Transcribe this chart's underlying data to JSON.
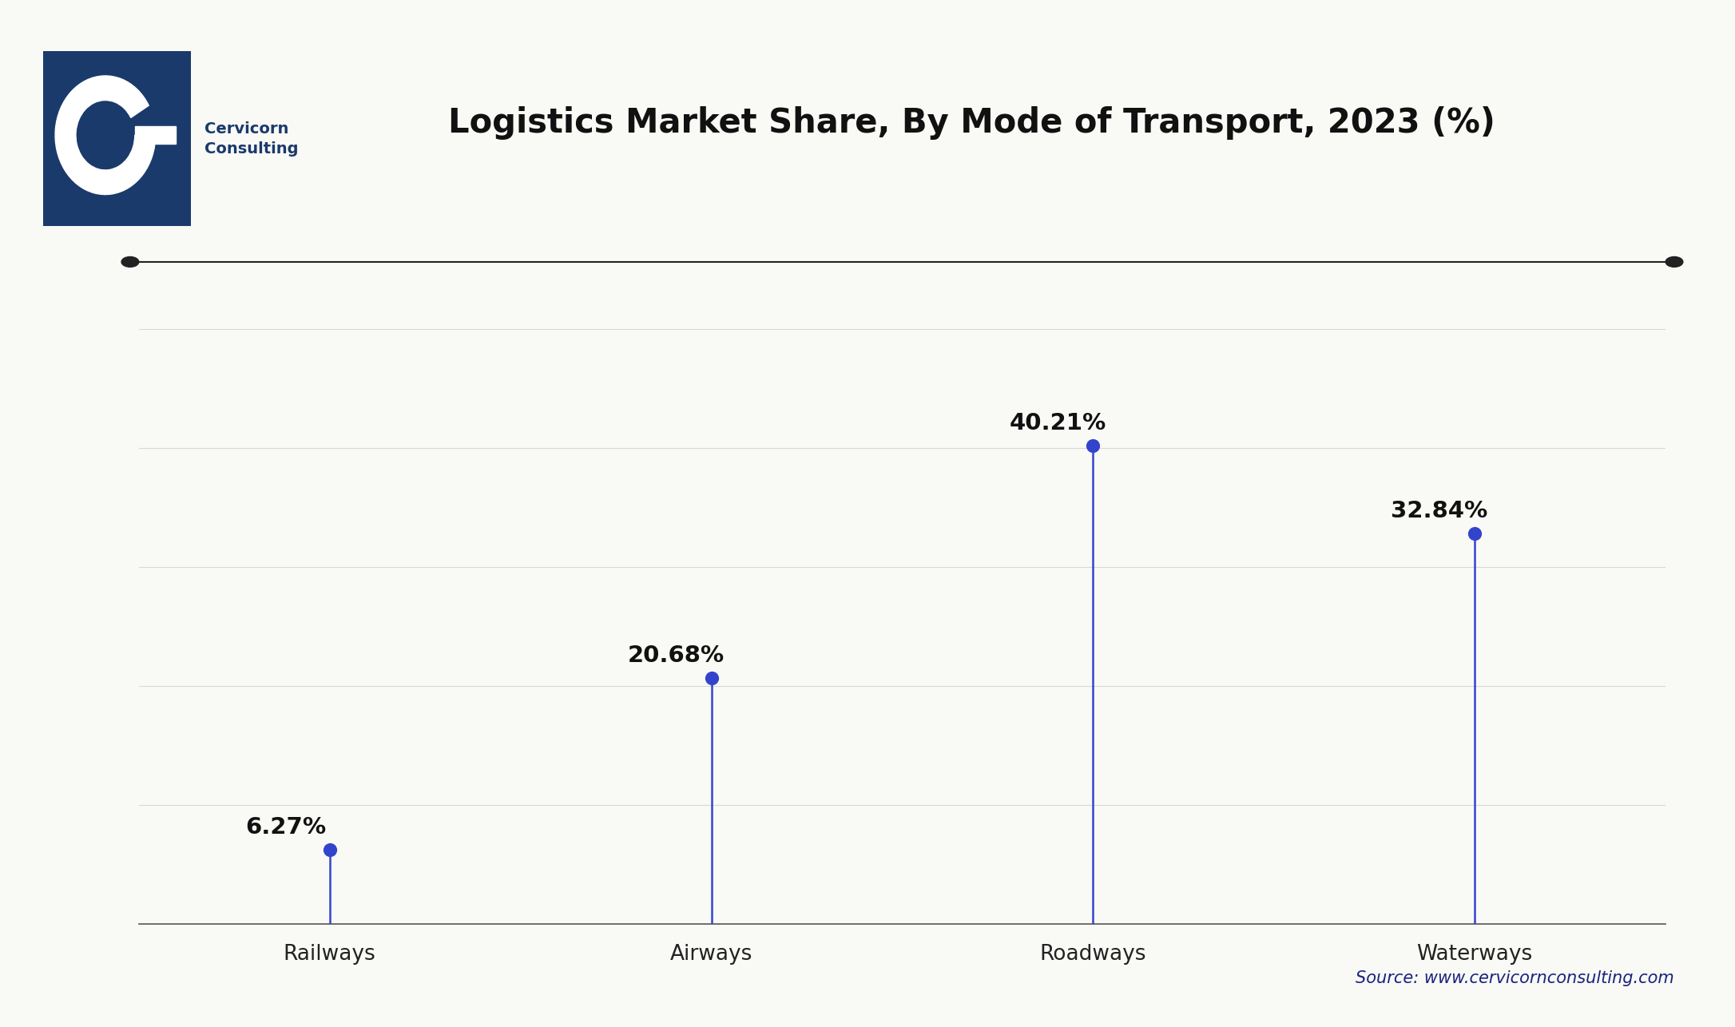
{
  "title": "Logistics Market Share, By Mode of Transport, 2023 (%)",
  "categories": [
    "Railways",
    "Airways",
    "Roadways",
    "Waterways"
  ],
  "values": [
    6.27,
    20.68,
    40.21,
    32.84
  ],
  "labels": [
    "6.27%",
    "20.68%",
    "40.21%",
    "32.84%"
  ],
  "line_color": "#3344cc",
  "marker_color": "#3344cc",
  "marker_size": 130,
  "background_color": "#f9f9f5",
  "ylim": [
    0,
    50
  ],
  "yticks": [
    0,
    10,
    20,
    30,
    40,
    50
  ],
  "title_fontsize": 30,
  "label_fontsize": 21,
  "tick_fontsize": 19,
  "source_text": "Source: www.cervicornconsulting.com",
  "source_fontsize": 15,
  "source_color": "#1a237e",
  "grid_color": "#d8d8d8",
  "axis_line_color": "#555555",
  "logo_bg_color": "#1a3a6b",
  "logo_text_color": "#1a3a6b",
  "cervicorn_text": "Cervicorn\nConsulting",
  "cervicorn_fontsize": 14
}
